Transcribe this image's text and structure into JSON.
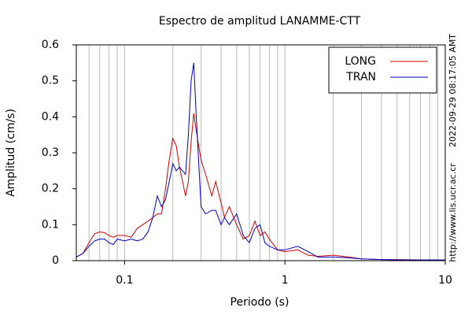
{
  "chart_data": {
    "type": "line",
    "title": "Espectro de amplitud LANAMME-CTT",
    "xlabel": "Periodo (s)",
    "ylabel": "Amplitud (cm/s)",
    "side_texts": [
      "2022-09-29 08:17:05 AMT",
      "http://www.lis.ucr.ac.cr"
    ],
    "xscale": "log",
    "xlim": [
      0.05,
      10
    ],
    "xticks": [
      0.1,
      1,
      10
    ],
    "minor_grid": true,
    "ylim": [
      0,
      0.6
    ],
    "yticks": [
      0,
      0.1,
      0.2,
      0.3,
      0.4,
      0.5,
      0.6
    ],
    "legend": "upper right",
    "x": [
      0.05,
      0.055,
      0.06,
      0.065,
      0.07,
      0.075,
      0.08,
      0.085,
      0.09,
      0.1,
      0.11,
      0.12,
      0.13,
      0.14,
      0.15,
      0.16,
      0.17,
      0.18,
      0.19,
      0.2,
      0.21,
      0.22,
      0.23,
      0.24,
      0.25,
      0.26,
      0.27,
      0.28,
      0.3,
      0.32,
      0.35,
      0.37,
      0.4,
      0.42,
      0.45,
      0.5,
      0.55,
      0.6,
      0.65,
      0.7,
      0.75,
      0.8,
      0.9,
      1.0,
      1.2,
      1.4,
      1.6,
      2.0,
      2.5,
      3,
      4,
      5,
      7,
      10
    ],
    "series": [
      {
        "name": "LONG",
        "color": "#d00000",
        "values": [
          0.01,
          0.02,
          0.05,
          0.075,
          0.08,
          0.078,
          0.07,
          0.065,
          0.07,
          0.07,
          0.065,
          0.09,
          0.1,
          0.11,
          0.12,
          0.13,
          0.13,
          0.2,
          0.28,
          0.34,
          0.32,
          0.26,
          0.22,
          0.18,
          0.22,
          0.33,
          0.41,
          0.36,
          0.28,
          0.24,
          0.18,
          0.22,
          0.16,
          0.12,
          0.15,
          0.1,
          0.06,
          0.07,
          0.11,
          0.07,
          0.08,
          0.06,
          0.03,
          0.025,
          0.03,
          0.015,
          0.012,
          0.015,
          0.01,
          0.005,
          0.003,
          0.003,
          0.002,
          0.002
        ]
      },
      {
        "name": "TRAN",
        "color": "#0000c0",
        "values": [
          0.01,
          0.02,
          0.04,
          0.055,
          0.06,
          0.06,
          0.05,
          0.045,
          0.06,
          0.055,
          0.06,
          0.055,
          0.06,
          0.08,
          0.12,
          0.18,
          0.15,
          0.17,
          0.22,
          0.27,
          0.25,
          0.26,
          0.25,
          0.24,
          0.35,
          0.5,
          0.55,
          0.4,
          0.15,
          0.13,
          0.14,
          0.14,
          0.1,
          0.12,
          0.1,
          0.13,
          0.07,
          0.05,
          0.09,
          0.1,
          0.05,
          0.04,
          0.03,
          0.03,
          0.04,
          0.025,
          0.01,
          0.01,
          0.008,
          0.005,
          0.003,
          0.002,
          0.002,
          0.002
        ]
      }
    ]
  }
}
